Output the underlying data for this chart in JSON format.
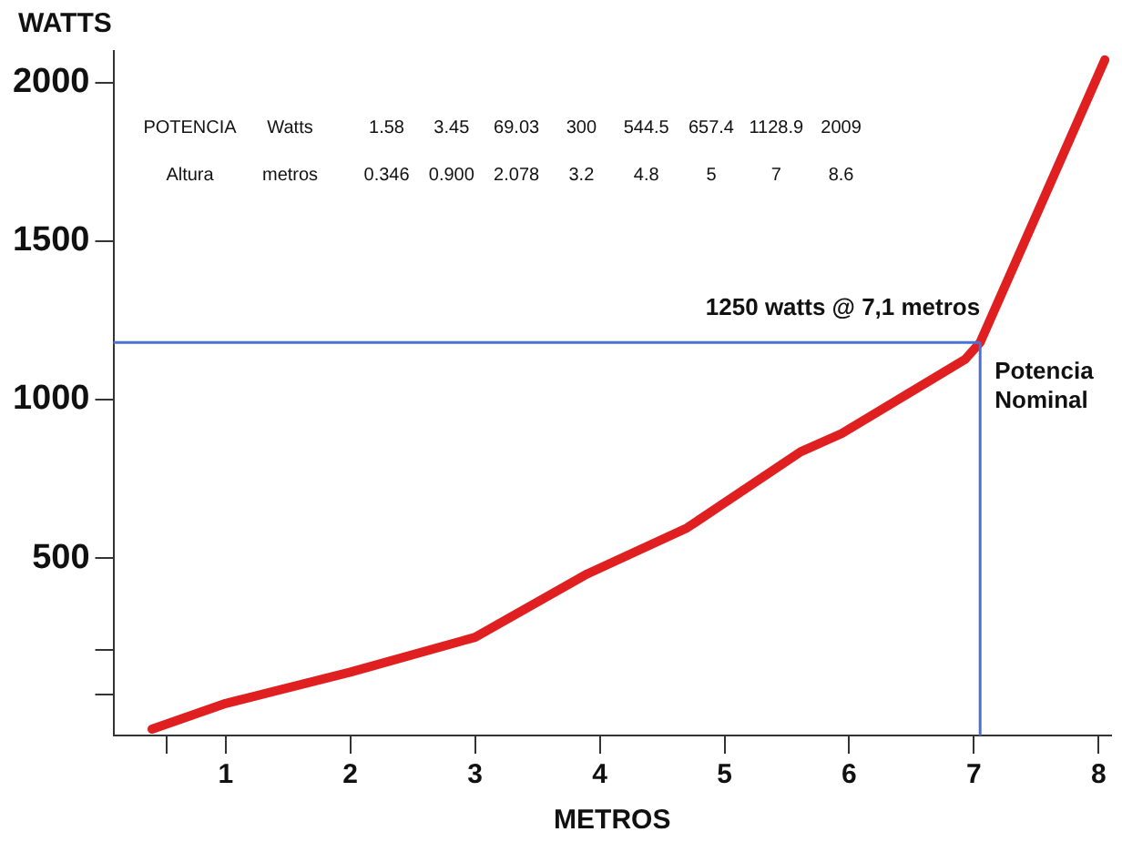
{
  "chart_data": {
    "type": "line",
    "xlabel": "METROS",
    "ylabel": "WATTS",
    "x": [
      0.41,
      1,
      2,
      3,
      3.9,
      4.7,
      5.61,
      5.94,
      6.93,
      7.05,
      8.05
    ],
    "series": [
      {
        "color": "#e02020",
        "values": [
          -40,
          41,
          140,
          250,
          450,
          595,
          835,
          893,
          1127,
          1180,
          2072
        ]
      }
    ],
    "xlim": [
      0.1,
      8.1
    ],
    "xticks": [
      {
        "value": 0.53,
        "label": null
      },
      1,
      2,
      3,
      4,
      5,
      6,
      7,
      8
    ],
    "ylim": [
      -60,
      2100
    ],
    "yticks": [
      {
        "value": 70,
        "label": null
      },
      {
        "value": 210,
        "label": null
      },
      500,
      1000,
      1500,
      2000
    ],
    "grid": false,
    "legend": false,
    "marker": "none",
    "line_style": "solid",
    "ref_lines": [
      {
        "axis": "y",
        "value": 1180,
        "color": "#4a72d4"
      },
      {
        "axis": "x",
        "value": 7.05,
        "color": "#4a72d4"
      }
    ],
    "annotations": [
      "POTENCIA  Watts  1.58  3.45  69.03  300  544.5  657.4  1128.9  2009",
      "Altura  metros  0.346  0.900  2.078  3.2  4.8  5  7  8.6",
      {
        "text": "1250 watts @ 7,1 metros",
        "x": 7.05,
        "y": 1180
      },
      {
        "text": "Potencia Nominal",
        "x": 7.05,
        "y": 1180
      }
    ]
  }
}
